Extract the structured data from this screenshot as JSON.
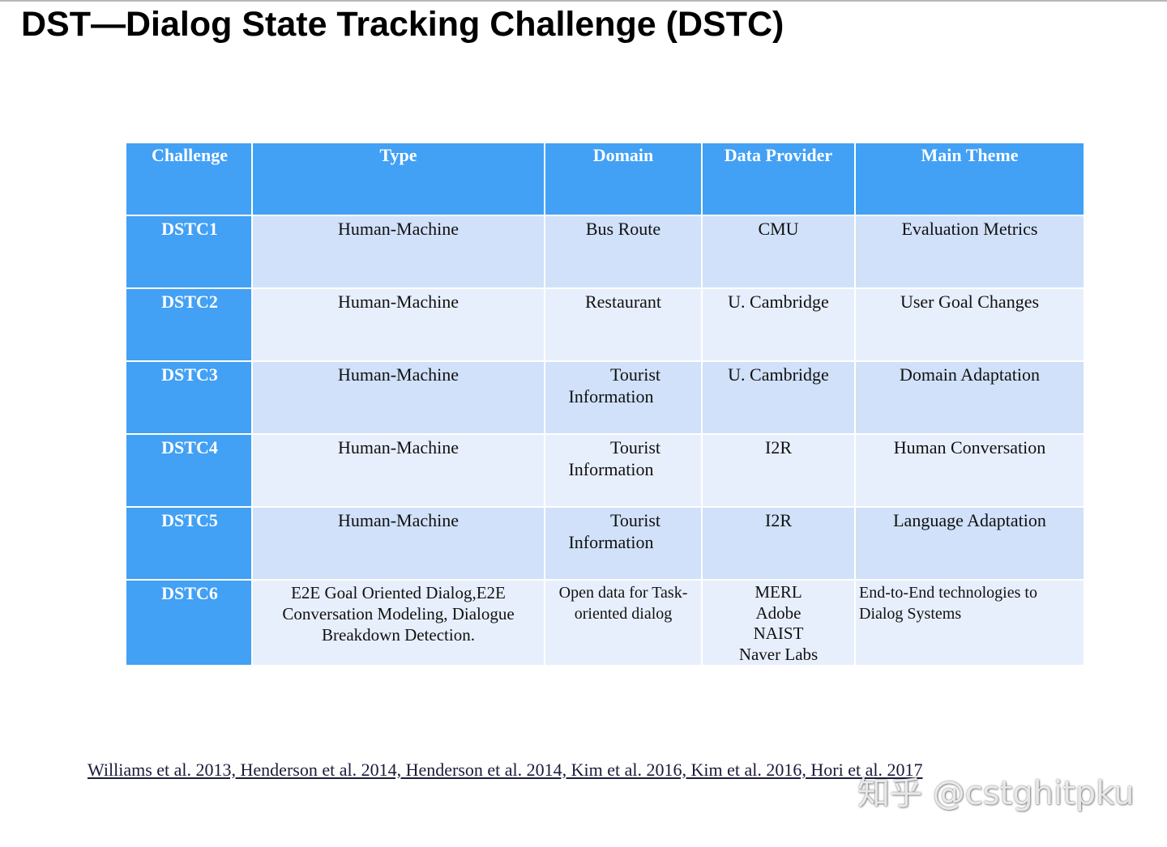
{
  "title": "DST—Dialog State Tracking Challenge (DSTC)",
  "table": {
    "headers": [
      "Challenge",
      "Type",
      "Domain",
      "Data Provider",
      "Main Theme"
    ],
    "rows": [
      {
        "challenge": "DSTC1",
        "type": [
          "Human-Machine"
        ],
        "domain": [
          "Bus Route"
        ],
        "provider": [
          "CMU"
        ],
        "theme": [
          "Evaluation Metrics"
        ]
      },
      {
        "challenge": "DSTC2",
        "type": [
          "Human-Machine"
        ],
        "domain": [
          "Restaurant"
        ],
        "provider": [
          "U. Cambridge"
        ],
        "theme": [
          "User Goal Changes"
        ]
      },
      {
        "challenge": "DSTC3",
        "type": [
          "Human-Machine"
        ],
        "domain": [
          "Tourist",
          "Information"
        ],
        "provider": [
          "U. Cambridge"
        ],
        "theme": [
          "Domain Adaptation"
        ]
      },
      {
        "challenge": "DSTC4",
        "type": [
          "Human-Machine"
        ],
        "domain": [
          "Tourist",
          "Information"
        ],
        "provider": [
          "I2R"
        ],
        "theme": [
          "Human Conversation"
        ]
      },
      {
        "challenge": "DSTC5",
        "type": [
          "Human-Machine"
        ],
        "domain": [
          "Tourist",
          "Information"
        ],
        "provider": [
          "I2R"
        ],
        "theme": [
          "Language Adaptation"
        ]
      },
      {
        "challenge": "DSTC6",
        "type": [
          "E2E Goal Oriented Dialog,E2E",
          "Conversation Modeling, Dialogue",
          "Breakdown Detection."
        ],
        "domain": [
          "Open data for Task-",
          "oriented dialog"
        ],
        "provider": [
          "MERL",
          "Adobe",
          "NAIST",
          "Naver Labs"
        ],
        "theme": [
          "End-to-End technologies to",
          "Dialog Systems"
        ]
      }
    ]
  },
  "citation": "Williams et al. 2013, Henderson et al. 2014, Henderson et al. 2014, Kim et al. 2016, Kim et al. 2016, Hori et al. 2017",
  "watermark": "知乎 @cstghitpku",
  "colors": {
    "header_blue": "#42a0f5",
    "row_odd": "#d0e1f9",
    "row_even": "#e8effc"
  }
}
